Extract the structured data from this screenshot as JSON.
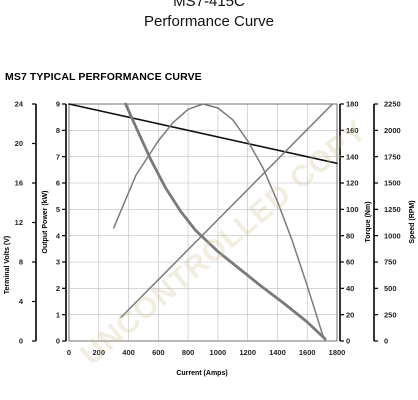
{
  "header": {
    "model": "MS7-415C",
    "subtitle": "Performance Curve",
    "chart_heading": "MS7 TYPICAL PERFORMANCE CURVE"
  },
  "watermark_text": "UNCONTROLLED COPY",
  "colors": {
    "grid": "#bdbdbd",
    "gray_curves": "#7a7a7a",
    "voltage_line": "#111111",
    "watermark": "#cdbf92"
  },
  "chart_data": {
    "type": "line",
    "title": "MS7 TYPICAL PERFORMANCE CURVE",
    "xlabel": "Current (Amps)",
    "xlim": [
      0,
      1800
    ],
    "x_ticks": [
      0,
      200,
      400,
      600,
      800,
      1000,
      1200,
      1400,
      1600,
      1800
    ],
    "grid": true,
    "axes": {
      "terminal_volts": {
        "label": "Terminal Volts (V)",
        "range": [
          0,
          24
        ],
        "ticks": [
          0,
          4,
          8,
          12,
          16,
          20,
          24
        ]
      },
      "output_power": {
        "label": "Output Power (kW)",
        "range": [
          0,
          9
        ],
        "ticks": [
          0,
          1,
          2,
          3,
          4,
          5,
          6,
          7,
          8,
          9
        ]
      },
      "torque": {
        "label": "Torque (Nm)",
        "range": [
          0,
          180
        ],
        "ticks": [
          0,
          20,
          40,
          60,
          80,
          100,
          120,
          140,
          160,
          180
        ]
      },
      "speed": {
        "label": "Speed (RPM)",
        "range": [
          0,
          2250
        ],
        "ticks": [
          0,
          250,
          500,
          750,
          1000,
          1250,
          1500,
          1750,
          2000,
          2250
        ]
      }
    },
    "series": [
      {
        "axis": "terminal_volts",
        "style": "black",
        "x": [
          0,
          1800
        ],
        "y": [
          24,
          18
        ]
      },
      {
        "axis": "output_power",
        "style": "gray",
        "x": [
          300,
          450,
          600,
          700,
          800,
          900,
          1000,
          1100,
          1200,
          1300,
          1400,
          1500,
          1600,
          1700,
          1720
        ],
        "y": [
          4.3,
          6.3,
          7.6,
          8.3,
          8.8,
          9.0,
          8.85,
          8.4,
          7.6,
          6.6,
          5.3,
          3.8,
          2.1,
          0.3,
          0
        ]
      },
      {
        "axis": "torque",
        "style": "gray",
        "x": [
          350,
          1770
        ],
        "y": [
          18,
          180
        ]
      },
      {
        "axis": "speed",
        "style": "gray_bold",
        "x": [
          380,
          450,
          550,
          650,
          750,
          850,
          1000,
          1150,
          1300,
          1450,
          1600,
          1720
        ],
        "y": [
          2250,
          2030,
          1720,
          1450,
          1230,
          1050,
          850,
          680,
          510,
          350,
          180,
          20
        ]
      }
    ]
  }
}
